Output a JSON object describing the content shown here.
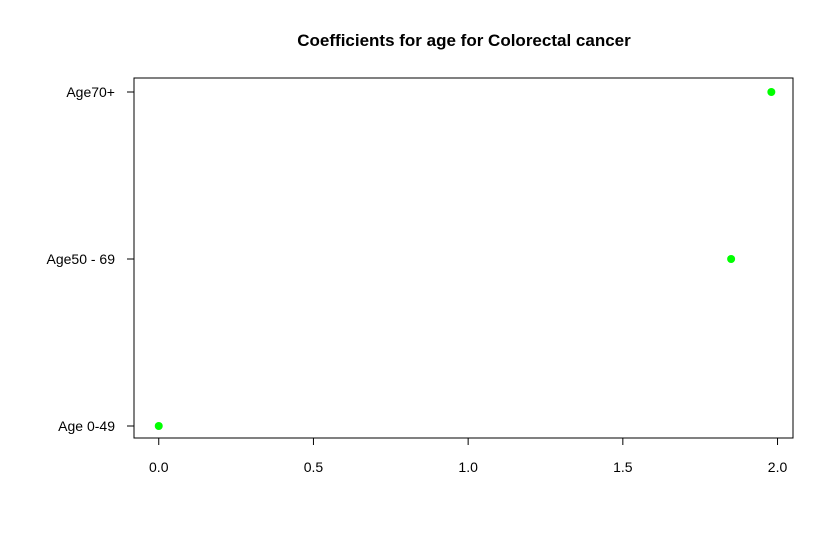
{
  "chart_data": {
    "type": "scatter",
    "title": "Coefficients for age for Colorectal cancer",
    "xlabel": "",
    "ylabel": "",
    "xlim": [
      -0.08,
      2.05
    ],
    "x_ticks": [
      0.0,
      0.5,
      1.0,
      1.5,
      2.0
    ],
    "x_tick_labels": [
      "0.0",
      "0.5",
      "1.0",
      "1.5",
      "2.0"
    ],
    "categories": [
      "Age 0-49",
      "Age50 - 69",
      "Age70+"
    ],
    "series": [
      {
        "points": [
          {
            "category": "Age 0-49",
            "x": 0.0
          },
          {
            "category": "Age50 - 69",
            "x": 1.85
          },
          {
            "category": "Age70+",
            "x": 1.98
          }
        ]
      }
    ],
    "point_color": "#00ff00",
    "grid": false,
    "legend": "none"
  }
}
